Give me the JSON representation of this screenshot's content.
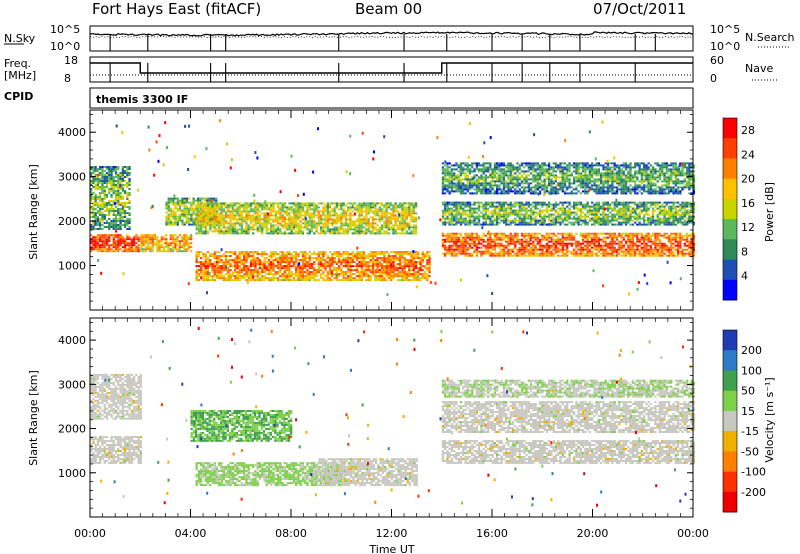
{
  "header": {
    "station": "Fort Hays East (fitACF)",
    "beam": "Beam 00",
    "date": "07/Oct/2011"
  },
  "noise_panel": {
    "left_label": "N.Sky",
    "left_ticks": [
      "10^5",
      "10^0"
    ],
    "right_label": "N.Search",
    "right_ticks": [
      "10^5",
      "10^0"
    ]
  },
  "freq_panel": {
    "left_label_line1": "Freq.",
    "left_label_line2": "[MHz]",
    "left_ticks": [
      "18",
      "8"
    ],
    "right_label": "Nave",
    "right_ticks": [
      "60",
      "0"
    ]
  },
  "cpid": {
    "label": "CPID",
    "mode": "themis 3300 IF"
  },
  "colors": {
    "power_scale": [
      "#0000ff",
      "#1e50b4",
      "#2e8b57",
      "#5cb85c",
      "#c8d400",
      "#ffc000",
      "#ff8000",
      "#ff4000",
      "#ff0000"
    ],
    "velocity_scale": [
      "#1e3cb4",
      "#2e7ac8",
      "#3fa04f",
      "#7ed04a",
      "#c8c8c0",
      "#f0b000",
      "#ff7f00",
      "#ff3000",
      "#ee0000"
    ]
  },
  "chart_data": [
    {
      "type": "heatmap",
      "name": "power",
      "ylabel": "Slant Range [km]",
      "yticks": [
        "1000",
        "2000",
        "3000",
        "4000"
      ],
      "ylim": [
        0,
        4500
      ],
      "colorbar_label": "Power [dB]",
      "colorbar_ticks": [
        "4",
        "8",
        "12",
        "16",
        "20",
        "24",
        "28"
      ],
      "colorbar_range": [
        0,
        30
      ],
      "bands": [
        {
          "t": [
            0.0,
            1.9
          ],
          "r": [
            1300,
            1700
          ],
          "level": 26
        },
        {
          "t": [
            0.0,
            1.6
          ],
          "r": [
            1800,
            3200
          ],
          "level": 12
        },
        {
          "t": [
            2.0,
            4.0
          ],
          "r": [
            1300,
            1700
          ],
          "level": 20
        },
        {
          "t": [
            3.0,
            5.0
          ],
          "r": [
            1900,
            2500
          ],
          "level": 14
        },
        {
          "t": [
            4.2,
            13.0
          ],
          "r": [
            1700,
            2400
          ],
          "level": 16
        },
        {
          "t": [
            4.2,
            13.5
          ],
          "r": [
            650,
            1300
          ],
          "level": 22
        },
        {
          "t": [
            14.0,
            24.0
          ],
          "r": [
            1200,
            1700
          ],
          "level": 24
        },
        {
          "t": [
            14.0,
            24.0
          ],
          "r": [
            1900,
            2400
          ],
          "level": 12
        },
        {
          "t": [
            14.0,
            24.0
          ],
          "r": [
            2600,
            3300
          ],
          "level": 10
        }
      ]
    },
    {
      "type": "heatmap",
      "name": "velocity",
      "xlabel": "Time UT",
      "xticks": [
        "00:00",
        "04:00",
        "08:00",
        "12:00",
        "16:00",
        "20:00",
        "00:00"
      ],
      "xlim_hours": [
        0,
        24
      ],
      "ylabel": "Slant Range [km]",
      "yticks": [
        "1000",
        "2000",
        "3000",
        "4000"
      ],
      "ylim": [
        0,
        4500
      ],
      "colorbar_label": "Velocity [m s⁻¹]",
      "colorbar_ticks": [
        "200",
        "100",
        "50",
        "15",
        "-15",
        "-50",
        "-100",
        "-200"
      ],
      "colorbar_range": [
        -250,
        250
      ],
      "bands": [
        {
          "t": [
            0.0,
            2.0
          ],
          "r": [
            1200,
            1800
          ],
          "level": 0
        },
        {
          "t": [
            0.0,
            2.0
          ],
          "r": [
            2200,
            3200
          ],
          "level": 0
        },
        {
          "t": [
            4.0,
            8.0
          ],
          "r": [
            1700,
            2400
          ],
          "level": 80
        },
        {
          "t": [
            4.2,
            10.0
          ],
          "r": [
            700,
            1200
          ],
          "level": 40
        },
        {
          "t": [
            9.0,
            13.0
          ],
          "r": [
            700,
            1300
          ],
          "level": 0
        },
        {
          "t": [
            14.0,
            24.0
          ],
          "r": [
            1200,
            1700
          ],
          "level": 0
        },
        {
          "t": [
            14.0,
            24.0
          ],
          "r": [
            1900,
            2600
          ],
          "level": 0
        },
        {
          "t": [
            14.0,
            24.0
          ],
          "r": [
            2700,
            3100
          ],
          "level": 20
        }
      ]
    }
  ]
}
